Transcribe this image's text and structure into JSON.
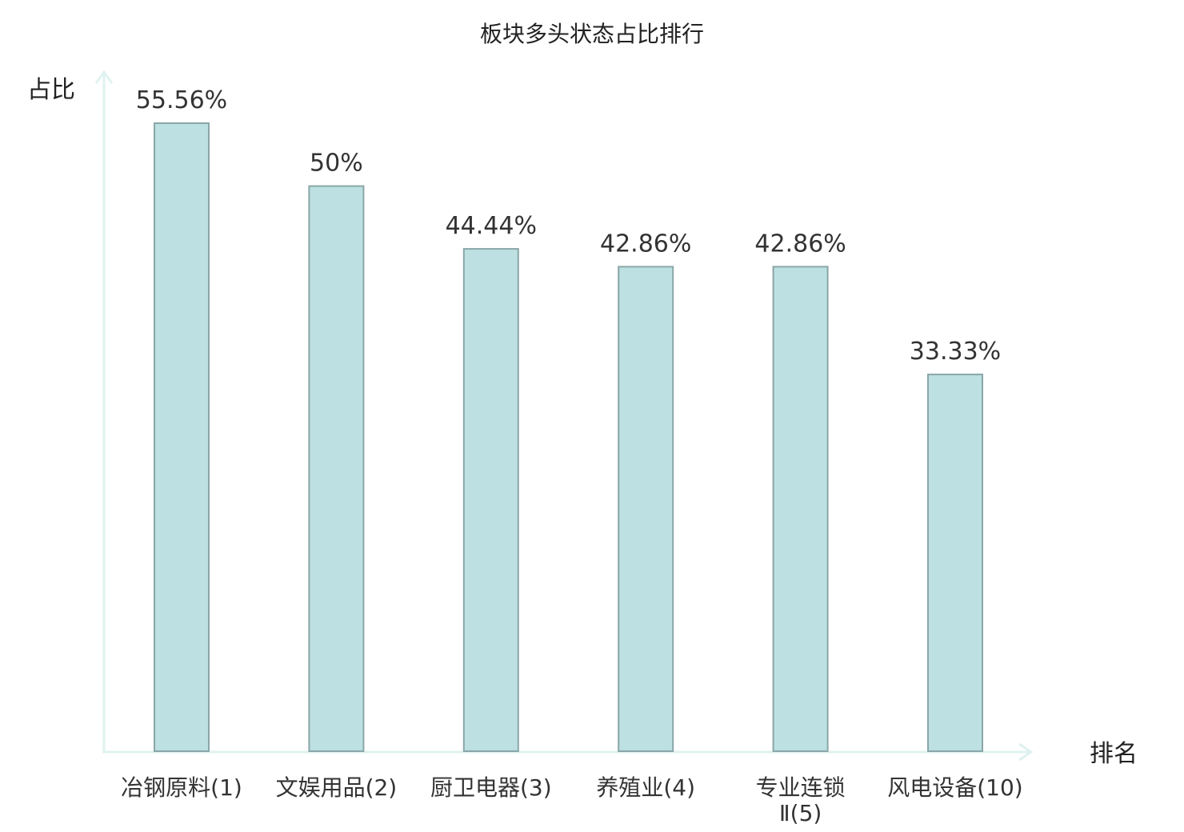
{
  "chart_data": {
    "type": "bar",
    "title": "板块多头状态占比排行",
    "ylabel": "占比",
    "xlabel": "排名",
    "categories": [
      {
        "lines": [
          "冶钢原料(1)"
        ],
        "highlight": false
      },
      {
        "lines": [
          "文娱用品(2)"
        ],
        "highlight": false
      },
      {
        "lines": [
          "厨卫电器(3)"
        ],
        "highlight": false
      },
      {
        "lines": [
          "养殖业(4)"
        ],
        "highlight": false
      },
      {
        "lines": [
          "专业连锁",
          "Ⅱ(5)"
        ],
        "highlight": false
      },
      {
        "lines": [
          "风电设备(10)"
        ],
        "highlight": true
      }
    ],
    "values": [
      55.56,
      50,
      44.44,
      42.86,
      42.86,
      33.33
    ],
    "value_labels": [
      "55.56%",
      "50%",
      "44.44%",
      "42.86%",
      "42.86%",
      "33.33%"
    ],
    "ylim": [
      0,
      55.56
    ],
    "grid": false,
    "legend": "none",
    "colors": {
      "bar_fill": "#bde0e2",
      "bar_stroke": "#8aa6a8",
      "axis": "#dff2ef",
      "text": "#333333",
      "highlight_text": "#e8151b"
    }
  }
}
